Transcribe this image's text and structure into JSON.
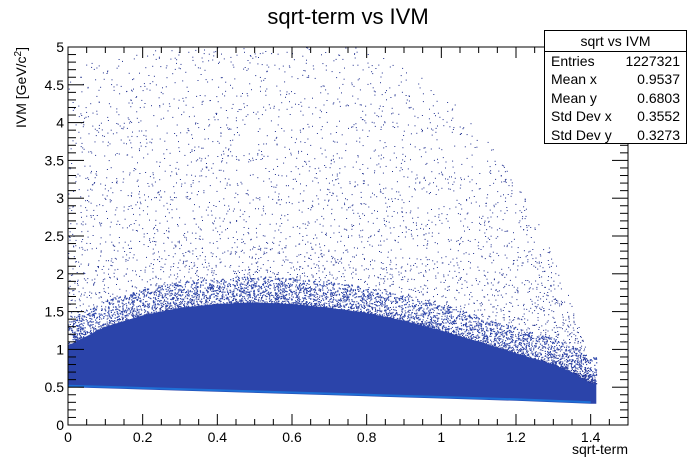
{
  "chart_data": {
    "type": "scatter",
    "title": "sqrt-term vs IVM",
    "xlabel": "sqrt-term",
    "ylabel": "IVM [GeV/c²]",
    "ylabel_base": "IVM [GeV/c",
    "ylabel_sup": "2",
    "ylabel_close": "]",
    "xlim": [
      0,
      1.5
    ],
    "ylim": [
      0,
      5
    ],
    "xticks": [
      "0",
      "0.2",
      "0.4",
      "0.6",
      "0.8",
      "1",
      "1.2",
      "1.4"
    ],
    "xtick_values": [
      0,
      0.2,
      0.4,
      0.6,
      0.8,
      1.0,
      1.2,
      1.4
    ],
    "yticks": [
      "0",
      "0.5",
      "1",
      "1.5",
      "2",
      "2.5",
      "3",
      "3.5",
      "4",
      "4.5",
      "5"
    ],
    "ytick_values": [
      0,
      0.5,
      1,
      1.5,
      2,
      2.5,
      3,
      3.5,
      4,
      4.5,
      5
    ],
    "grid": false,
    "colors": {
      "dense": "#2b44aa",
      "edge": "#1e6fd6",
      "sparse": "#1f2f8f"
    },
    "band_upper": [
      {
        "x": 0.0,
        "y": 1.05
      },
      {
        "x": 0.1,
        "y": 1.3
      },
      {
        "x": 0.2,
        "y": 1.45
      },
      {
        "x": 0.3,
        "y": 1.55
      },
      {
        "x": 0.4,
        "y": 1.6
      },
      {
        "x": 0.5,
        "y": 1.62
      },
      {
        "x": 0.6,
        "y": 1.6
      },
      {
        "x": 0.7,
        "y": 1.55
      },
      {
        "x": 0.8,
        "y": 1.48
      },
      {
        "x": 0.9,
        "y": 1.38
      },
      {
        "x": 1.0,
        "y": 1.25
      },
      {
        "x": 1.1,
        "y": 1.1
      },
      {
        "x": 1.2,
        "y": 0.95
      },
      {
        "x": 1.3,
        "y": 0.8
      },
      {
        "x": 1.35,
        "y": 0.7
      },
      {
        "x": 1.4,
        "y": 0.55
      }
    ],
    "band_lower": [
      {
        "x": 0.0,
        "y": 0.5
      },
      {
        "x": 0.2,
        "y": 0.47
      },
      {
        "x": 0.4,
        "y": 0.44
      },
      {
        "x": 0.6,
        "y": 0.41
      },
      {
        "x": 0.8,
        "y": 0.38
      },
      {
        "x": 1.0,
        "y": 0.35
      },
      {
        "x": 1.2,
        "y": 0.32
      },
      {
        "x": 1.3,
        "y": 0.3
      },
      {
        "x": 1.4,
        "y": 0.28
      }
    ],
    "x_max_data": 1.415
  },
  "stats": {
    "title": "sqrt vs IVM",
    "rows": [
      {
        "label": "Entries",
        "value": "1227321"
      },
      {
        "label": "Mean x",
        "value": "0.9537"
      },
      {
        "label": "Mean y",
        "value": "0.6803"
      },
      {
        "label": "Std Dev x",
        "value": "0.3552"
      },
      {
        "label": "Std Dev y",
        "value": "0.3273"
      }
    ]
  }
}
